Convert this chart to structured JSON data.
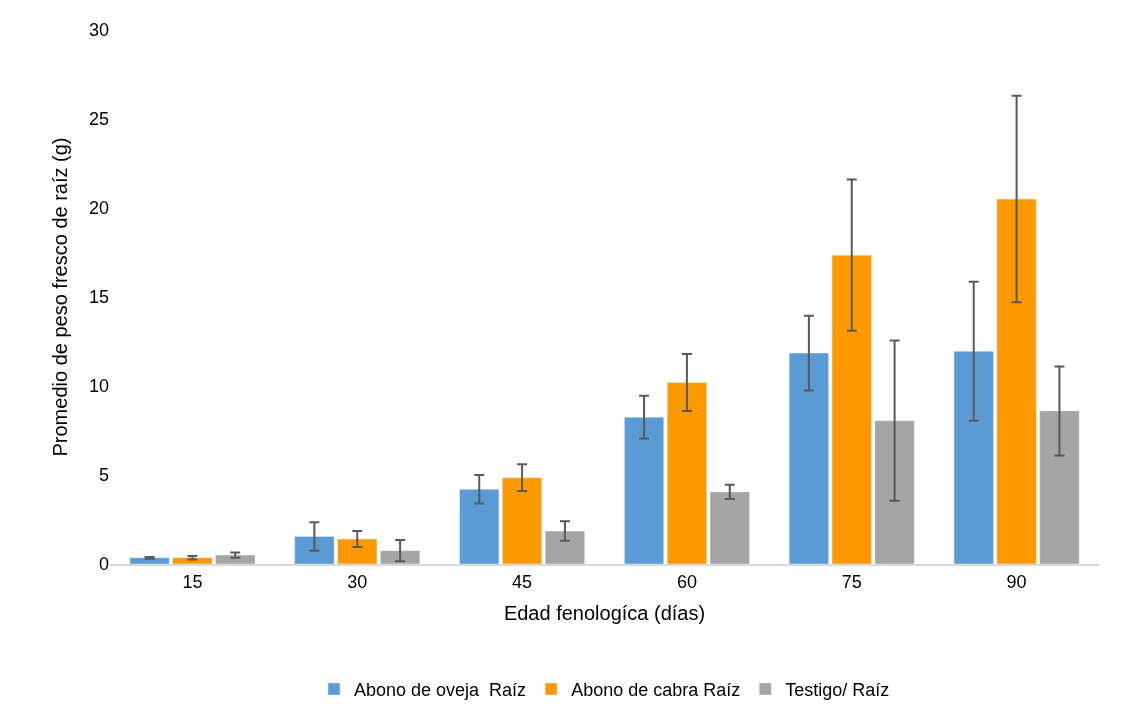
{
  "chart_data": {
    "type": "bar",
    "xlabel": "Edad fenologíca (días)",
    "ylabel": "Promedio de peso fresco de raíz (g)",
    "categories": [
      "15",
      "30",
      "45",
      "60",
      "75",
      "90"
    ],
    "series": [
      {
        "name": "Abono de oveja  Raíz",
        "color": "#5b9bd5",
        "values": [
          0.35,
          1.55,
          4.2,
          8.25,
          11.85,
          11.95
        ],
        "errors": [
          0.05,
          0.8,
          0.8,
          1.2,
          2.1,
          3.9
        ]
      },
      {
        "name": "Abono de cabra Raíz",
        "color": "#ff9900",
        "values": [
          0.35,
          1.4,
          4.85,
          10.2,
          17.35,
          20.5
        ],
        "errors": [
          0.1,
          0.45,
          0.75,
          1.6,
          4.25,
          5.8
        ]
      },
      {
        "name": "Testigo/ Raíz",
        "color": "#a5a5a5",
        "values": [
          0.5,
          0.75,
          1.85,
          4.05,
          8.05,
          8.6
        ],
        "errors": [
          0.15,
          0.6,
          0.55,
          0.4,
          4.5,
          2.5
        ]
      }
    ],
    "ylim": [
      0,
      30
    ],
    "yticks": [
      0,
      5,
      10,
      15,
      20,
      25,
      30
    ],
    "legend": "bottom"
  }
}
